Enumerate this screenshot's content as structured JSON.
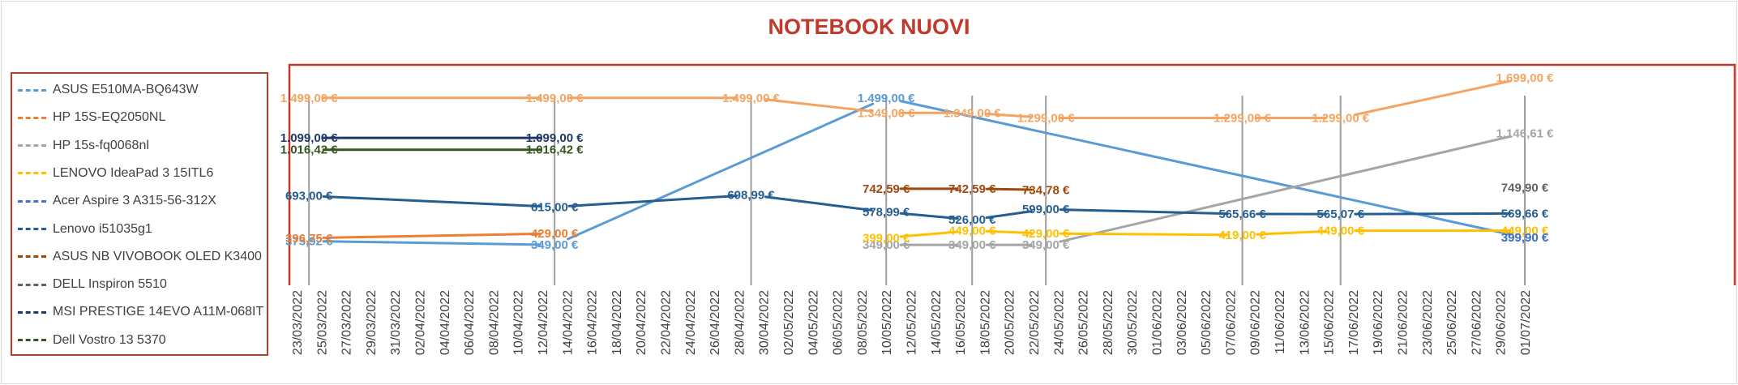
{
  "chart_data": {
    "type": "line",
    "title": "NOTEBOOK NUOVI",
    "x_ticks": [
      "23/03/2022",
      "25/03/2022",
      "27/03/2022",
      "29/03/2022",
      "31/03/2022",
      "02/04/2022",
      "04/04/2022",
      "06/04/2022",
      "08/04/2022",
      "10/04/2022",
      "12/04/2022",
      "14/04/2022",
      "16/04/2022",
      "18/04/2022",
      "20/04/2022",
      "22/04/2022",
      "24/04/2022",
      "26/04/2022",
      "28/04/2022",
      "30/04/2022",
      "02/05/2022",
      "04/05/2022",
      "06/05/2022",
      "08/05/2022",
      "10/05/2022",
      "12/05/2022",
      "14/05/2022",
      "16/05/2022",
      "18/05/2022",
      "20/05/2022",
      "22/05/2022",
      "24/05/2022",
      "26/05/2022",
      "28/05/2022",
      "30/05/2022",
      "01/06/2022",
      "03/06/2022",
      "05/06/2022",
      "07/06/2022",
      "09/06/2022",
      "11/06/2022",
      "13/06/2022",
      "15/06/2022",
      "17/06/2022",
      "19/06/2022",
      "21/06/2022",
      "23/06/2022",
      "25/06/2022",
      "27/06/2022",
      "29/06/2022",
      "01/07/2022"
    ],
    "vlines_dates": [
      "24/03/2022",
      "13/04/2022",
      "29/04/2022",
      "10/05/2022",
      "17/05/2022",
      "23/05/2022",
      "08/06/2022",
      "16/06/2022",
      "01/07/2022"
    ],
    "legend_position": "left",
    "grid": false,
    "series": [
      {
        "name": "ASUS E510MA-BQ643W",
        "color": "#5b9bd5",
        "points": [
          {
            "x": "24/03/2022",
            "y": 375.92,
            "label": "375,92 €"
          },
          {
            "x": "13/04/2022",
            "y": 349.0,
            "label": "349,00 €"
          },
          {
            "x": "10/05/2022",
            "y": 1499.0,
            "label": "1.499,00 €"
          },
          {
            "x": "01/07/2022",
            "y": 399.9,
            "label": "399,90 €"
          }
        ]
      },
      {
        "name": "HP 15S-EQ2050NL",
        "color": "#ed7d31",
        "points": [
          {
            "x": "24/03/2022",
            "y": 396.75,
            "label": "396,75 €"
          },
          {
            "x": "13/04/2022",
            "y": 429.0,
            "label": "429,00 €"
          }
        ]
      },
      {
        "name": "HP 15s-fq0068nl",
        "color": "#a5a5a5",
        "points": [
          {
            "x": "10/05/2022",
            "y": 349.0,
            "label": "349,00 €"
          },
          {
            "x": "17/05/2022",
            "y": 349.0,
            "label": "349,00 €"
          },
          {
            "x": "23/05/2022",
            "y": 349.0,
            "label": "349,00 €"
          },
          {
            "x": "01/07/2022",
            "y": 1146.61,
            "label": "1.146,61 €"
          }
        ]
      },
      {
        "name": "LENOVO IdeaPad 3 15ITL6",
        "color": "#ffc000",
        "points": [
          {
            "x": "10/05/2022",
            "y": 399.0,
            "label": "399,00 €"
          },
          {
            "x": "17/05/2022",
            "y": 449.0,
            "label": "449,00 €"
          },
          {
            "x": "23/05/2022",
            "y": 429.0,
            "label": "429,00 €"
          },
          {
            "x": "08/06/2022",
            "y": 419.0,
            "label": "419,00 €"
          },
          {
            "x": "16/06/2022",
            "y": 449.0,
            "label": "449,00 €"
          },
          {
            "x": "01/07/2022",
            "y": 449.0,
            "label": "449,00 €"
          }
        ]
      },
      {
        "name": "Acer Aspire 3 A315-56-312X",
        "color": "#4472c4",
        "points": [
          {
            "x": "01/07/2022",
            "y": 399.9,
            "label": "399,90 €"
          }
        ]
      },
      {
        "name": "Lenovo i51035g1",
        "color": "#255e91",
        "points": [
          {
            "x": "24/03/2022",
            "y": 693.0,
            "label": "693,00 €"
          },
          {
            "x": "13/04/2022",
            "y": 615.0,
            "label": "615,00 €"
          },
          {
            "x": "29/04/2022",
            "y": 698.99,
            "label": "698,99 €"
          },
          {
            "x": "10/05/2022",
            "y": 578.99,
            "label": "578,99 €"
          },
          {
            "x": "17/05/2022",
            "y": 526.0,
            "label": "526,00 €"
          },
          {
            "x": "23/05/2022",
            "y": 599.0,
            "label": "599,00 €"
          },
          {
            "x": "08/06/2022",
            "y": 565.66,
            "label": "565,66 €"
          },
          {
            "x": "16/06/2022",
            "y": 565.07,
            "label": "565,07 €"
          },
          {
            "x": "01/07/2022",
            "y": 569.66,
            "label": "569,66 €"
          }
        ]
      },
      {
        "name": "ASUS NB VIVOBOOK OLED K3400",
        "color": "#9e480e",
        "points": [
          {
            "x": "10/05/2022",
            "y": 742.59,
            "label": "742,59 €"
          },
          {
            "x": "17/05/2022",
            "y": 742.59,
            "label": "742,59 €"
          },
          {
            "x": "23/05/2022",
            "y": 734.78,
            "label": "734,78 €"
          }
        ]
      },
      {
        "name": "DELL Inspiron 5510",
        "color": "#636363",
        "points": [
          {
            "x": "01/07/2022",
            "y": 749.9,
            "label": "749,90 €"
          }
        ]
      },
      {
        "name": "MSI PRESTIGE 14EVO A11M-068IT",
        "color": "#1f3864",
        "points": [
          {
            "x": "24/03/2022",
            "y": 1099.0,
            "label": "1.099,00 €"
          },
          {
            "x": "13/04/2022",
            "y": 1099.0,
            "label": "1.099,00 €"
          }
        ]
      },
      {
        "name": "Dell Vostro 13 5370",
        "color": "#375623",
        "points": [
          {
            "x": "24/03/2022",
            "y": 1016.42,
            "label": "1.016,42 €"
          },
          {
            "x": "13/04/2022",
            "y": 1016.42,
            "label": "1.016,42 €"
          }
        ]
      },
      {
        "name": "",
        "color": "#f4a460",
        "legend": false,
        "points": [
          {
            "x": "24/03/2022",
            "y": 1499.0,
            "label": "1.499,00 €"
          },
          {
            "x": "13/04/2022",
            "y": 1499.0,
            "label": "1.499,00 €"
          },
          {
            "x": "29/04/2022",
            "y": 1499.0,
            "label": "1.499,00 €"
          },
          {
            "x": "10/05/2022",
            "y": 1349.0,
            "label": "1.349,00 €"
          },
          {
            "x": "17/05/2022",
            "y": 1349.0,
            "label": "1.349,00 €"
          },
          {
            "x": "23/05/2022",
            "y": 1299.0,
            "label": "1.299,00 €"
          },
          {
            "x": "08/06/2022",
            "y": 1299.0,
            "label": "1.299,00 €"
          },
          {
            "x": "16/06/2022",
            "y": 1299.0,
            "label": "1.299,00 €"
          },
          {
            "x": "01/07/2022",
            "y": 1699.0,
            "label": "1.699,00 €"
          }
        ]
      }
    ]
  }
}
